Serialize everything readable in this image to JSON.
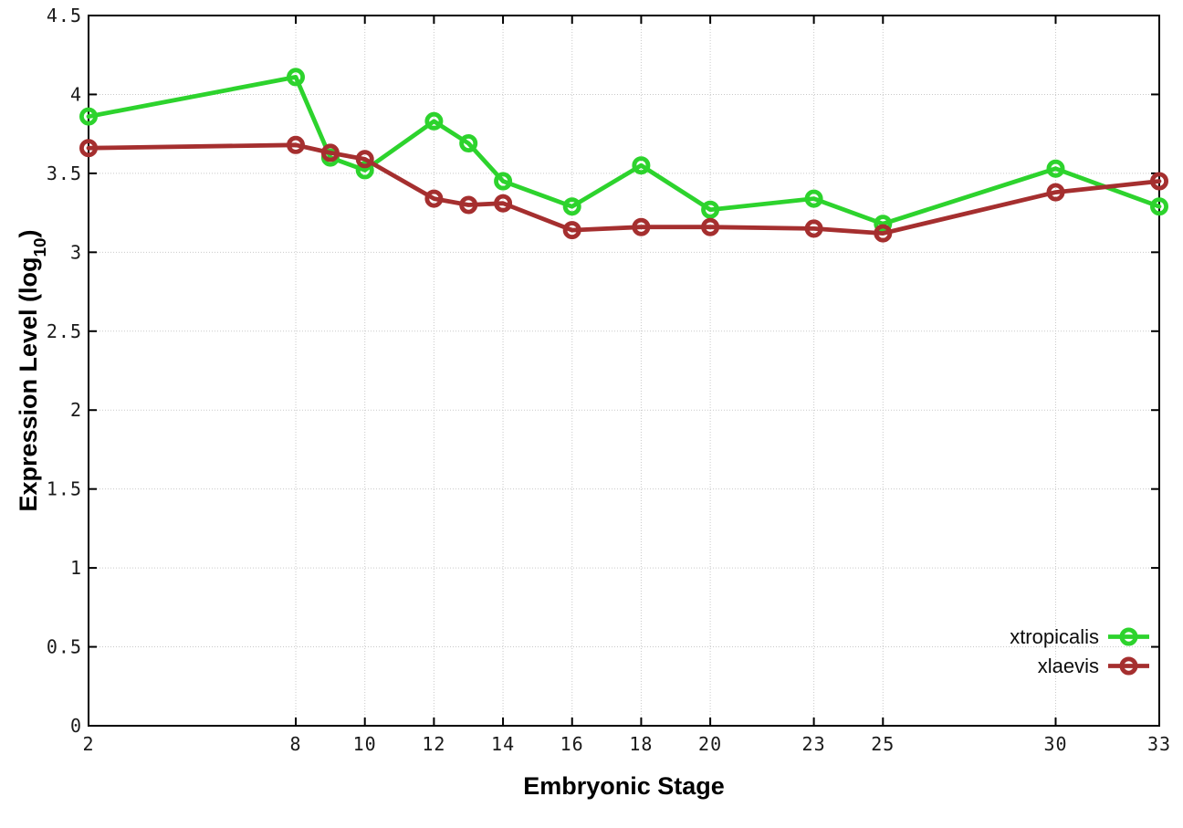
{
  "chart_data": {
    "type": "line",
    "title": "",
    "xlabel": "Embryonic Stage",
    "ylabel": {
      "pre": "Expression Level (log",
      "sub": "10",
      "post": ")"
    },
    "xlim": [
      2,
      33
    ],
    "ylim": [
      0,
      4.5
    ],
    "x_ticks": [
      2,
      8,
      10,
      12,
      14,
      16,
      18,
      20,
      23,
      25,
      30,
      33
    ],
    "y_ticks": [
      0,
      0.5,
      1,
      1.5,
      2,
      2.5,
      3,
      3.5,
      4,
      4.5
    ],
    "y_tick_labels": [
      "0",
      "0.5",
      "1",
      "1.5",
      "2",
      "2.5",
      "3",
      "3.5",
      "4",
      "4.5"
    ],
    "grid": true,
    "legend_position": "bottom-right",
    "marker": "open-circle",
    "x": [
      2,
      8,
      9,
      10,
      12,
      13,
      14,
      16,
      18,
      20,
      23,
      25,
      30,
      33
    ],
    "series": [
      {
        "name": "xtropicalis",
        "color": "#2dd32d",
        "values": [
          3.86,
          4.11,
          3.6,
          3.52,
          3.83,
          3.69,
          3.45,
          3.29,
          3.55,
          3.27,
          3.34,
          3.18,
          3.53,
          3.29
        ]
      },
      {
        "name": "xlaevis",
        "color": "#a52f2f",
        "values": [
          3.66,
          3.68,
          3.63,
          3.59,
          3.34,
          3.3,
          3.31,
          3.14,
          3.16,
          3.16,
          3.15,
          3.12,
          3.38,
          3.45
        ]
      }
    ],
    "colors": {
      "axis": "#000000",
      "grid": "#c9c9c9",
      "tick_text": "#1a1a1a"
    }
  }
}
